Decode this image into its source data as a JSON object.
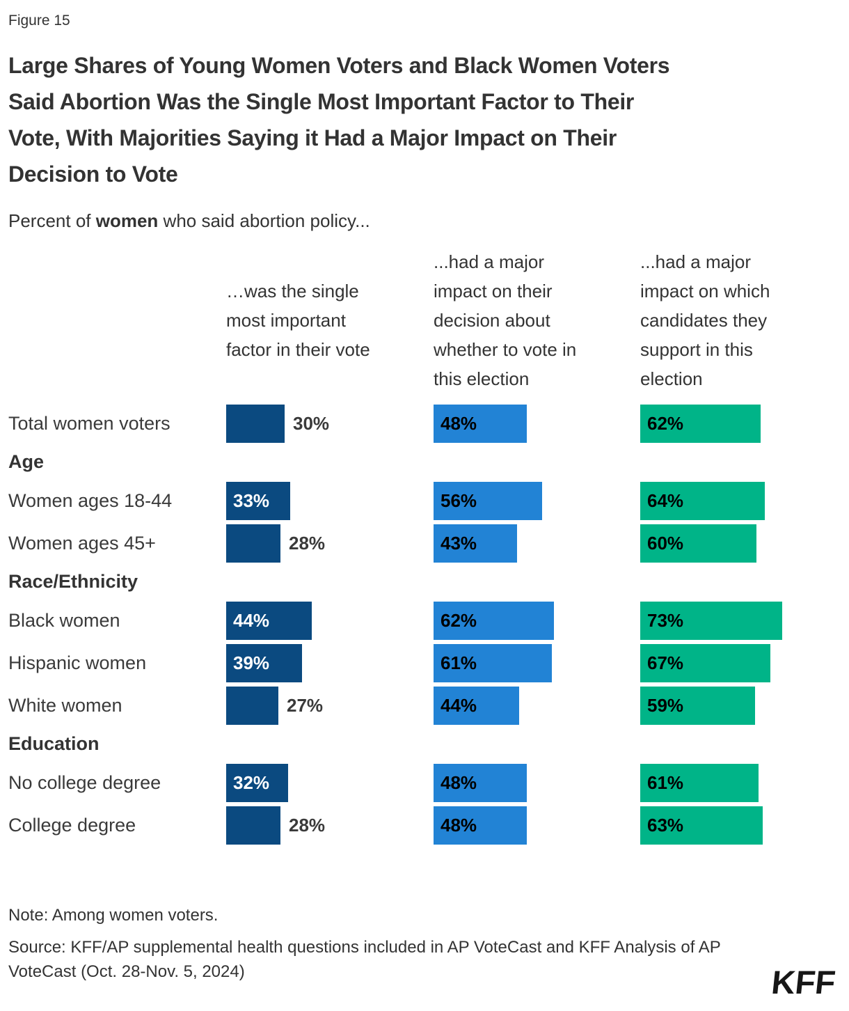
{
  "page": {
    "figure_label": "Figure 15",
    "title": "Large Shares of Young Women Voters and Black Women Voters\nSaid Abortion Was the Single Most Important Factor to Their\nVote, With Majorities Saying it Had a Major Impact on Their\nDecision to Vote",
    "subtitle_prefix": "Percent of ",
    "subtitle_bold": "women",
    "subtitle_suffix": " who said abortion policy..."
  },
  "chart_data": {
    "type": "bar",
    "orientation": "horizontal",
    "value_suffix": "%",
    "value_range": [
      0,
      100
    ],
    "columns": [
      {
        "header": "…was the single\nmost important\nfactor in their vote",
        "color": "#0B4A80",
        "inside_label_color": "#ffffff"
      },
      {
        "header": "...had a major\nimpact on their\ndecision about\nwhether to vote in\nthis election",
        "color": "#2283D5",
        "inside_label_color": "#000000"
      },
      {
        "header": "...had a major\nimpact on which\ncandidates they\nsupport in this\nelection",
        "color": "#00B488",
        "inside_label_color": "#000000"
      }
    ],
    "rows": [
      {
        "type": "data",
        "label": "Total women voters",
        "values": [
          30,
          48,
          62
        ]
      },
      {
        "type": "section",
        "label": "Age"
      },
      {
        "type": "data",
        "label": "Women ages 18-44",
        "values": [
          33,
          56,
          64
        ]
      },
      {
        "type": "data",
        "label": "Women ages 45+",
        "values": [
          28,
          43,
          60
        ]
      },
      {
        "type": "section",
        "label": "Race/Ethnicity"
      },
      {
        "type": "data",
        "label": "Black women",
        "values": [
          44,
          62,
          73
        ]
      },
      {
        "type": "data",
        "label": "Hispanic women",
        "values": [
          39,
          61,
          67
        ]
      },
      {
        "type": "data",
        "label": "White women",
        "values": [
          27,
          44,
          59
        ]
      },
      {
        "type": "section",
        "label": "Education"
      },
      {
        "type": "data",
        "label": "No college degree",
        "values": [
          32,
          48,
          61
        ]
      },
      {
        "type": "data",
        "label": "College degree",
        "values": [
          28,
          48,
          63
        ]
      }
    ]
  },
  "footer": {
    "note": "Note: Among women voters.",
    "source": "Source: KFF/AP supplemental health questions included in AP VoteCast and KFF Analysis of AP VoteCast (Oct. 28-Nov. 5, 2024)",
    "logo_text": "KFF",
    "outside_label_color": "#3a3a3a"
  }
}
